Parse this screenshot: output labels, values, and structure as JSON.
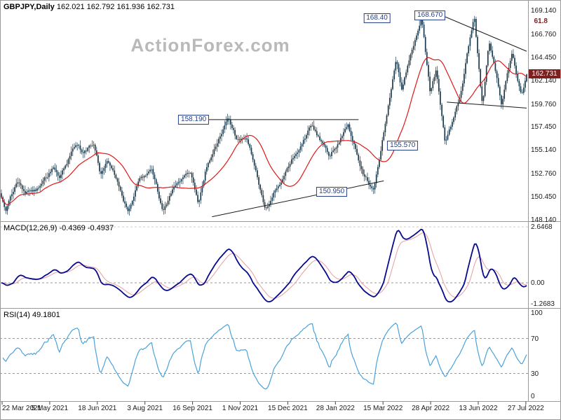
{
  "header": {
    "symbol": "GBPJPY,Daily",
    "ohlc": "162.021 162.792 161.936 162.731"
  },
  "watermark": "ActionForex.com",
  "panels": {
    "macd": {
      "header": "MACD(12,26,9) -0.4369 -0.4937"
    },
    "rsi": {
      "header": "RSI(14) 49.1801"
    }
  },
  "chart_data": {
    "type": "candlestick",
    "symbol": "GBPJPY",
    "timeframe": "Daily",
    "last_candle": {
      "open": 162.021,
      "high": 162.792,
      "low": 161.936,
      "close": 162.731
    },
    "current_price": {
      "label": "162.731",
      "value": 162.731
    },
    "price_axis": {
      "max": 169.14,
      "min": 148.14,
      "labels": [
        "169.140",
        "166.760",
        "164.450",
        "162.140",
        "159.760",
        "157.450",
        "155.140",
        "152.760",
        "150.450",
        "148.140"
      ],
      "values": [
        169.14,
        166.76,
        164.45,
        162.14,
        159.76,
        157.45,
        155.14,
        152.76,
        150.45,
        148.14
      ]
    },
    "x_labels": [
      "22 Mar 2021",
      "5 May 2021",
      "18 Jun 2021",
      "3 Aug 2021",
      "16 Sep 2021",
      "1 Nov 2021",
      "15 Dec 2021",
      "28 Jan 2022",
      "15 Mar 2022",
      "28 Apr 2022",
      "13 Jun 2022",
      "27 Jul 2022"
    ],
    "candle_count": 354,
    "price_keypoints": [
      [
        0.0,
        150.3
      ],
      [
        0.008,
        149.1
      ],
      [
        0.03,
        152.2
      ],
      [
        0.045,
        150.9
      ],
      [
        0.07,
        151.3
      ],
      [
        0.1,
        153.4
      ],
      [
        0.11,
        152.3
      ],
      [
        0.135,
        155.1
      ],
      [
        0.145,
        155.9
      ],
      [
        0.155,
        154.6
      ],
      [
        0.176,
        156.0
      ],
      [
        0.188,
        152.9
      ],
      [
        0.202,
        154.0
      ],
      [
        0.222,
        151.8
      ],
      [
        0.242,
        148.7
      ],
      [
        0.262,
        152.3
      ],
      [
        0.287,
        153.2
      ],
      [
        0.307,
        149.1
      ],
      [
        0.33,
        151.6
      ],
      [
        0.359,
        152.8
      ],
      [
        0.375,
        149.6
      ],
      [
        0.39,
        153.4
      ],
      [
        0.432,
        158.1
      ],
      [
        0.448,
        156.2
      ],
      [
        0.468,
        156.4
      ],
      [
        0.497,
        150.4
      ],
      [
        0.503,
        149.2
      ],
      [
        0.53,
        151.9
      ],
      [
        0.558,
        154.8
      ],
      [
        0.572,
        155.9
      ],
      [
        0.59,
        157.6
      ],
      [
        0.625,
        154.4
      ],
      [
        0.66,
        157.7
      ],
      [
        0.687,
        153.1
      ],
      [
        0.709,
        150.95
      ],
      [
        0.752,
        164.5
      ],
      [
        0.762,
        161.3
      ],
      [
        0.8,
        168.42
      ],
      [
        0.816,
        160.9
      ],
      [
        0.828,
        163.3
      ],
      [
        0.845,
        155.65
      ],
      [
        0.872,
        160.2
      ],
      [
        0.9,
        168.65
      ],
      [
        0.916,
        159.6
      ],
      [
        0.928,
        166.2
      ],
      [
        0.952,
        159.9
      ],
      [
        0.972,
        164.7
      ],
      [
        0.99,
        160.4
      ],
      [
        1.0,
        162.6
      ]
    ],
    "ma": {
      "period": 25
    },
    "annotations": [
      {
        "label": "168.40",
        "t": 0.715,
        "price": 168.4,
        "style": "box"
      },
      {
        "label": "168.670",
        "t": 0.816,
        "price": 168.67,
        "style": "box"
      },
      {
        "label": "158.190",
        "t": 0.366,
        "price": 158.19,
        "style": "box"
      },
      {
        "label": "155.570",
        "t": 0.764,
        "price": 155.57,
        "style": "box"
      },
      {
        "label": "150.950",
        "t": 0.629,
        "price": 150.95,
        "style": "box"
      },
      {
        "label": "61.8",
        "t": 1.027,
        "price": 168.05,
        "style": "plain"
      }
    ],
    "trend_lines": [
      [
        0.401,
        148.45,
        0.728,
        152.05
      ],
      [
        0.381,
        158.19,
        0.68,
        158.19
      ],
      [
        0.843,
        168.55,
        1.0,
        165.05
      ],
      [
        0.848,
        159.95,
        1.0,
        159.35
      ]
    ],
    "macd": {
      "params": [
        12,
        26,
        9
      ],
      "values": [
        -0.4369,
        -0.4937
      ],
      "axis": {
        "labels": [
          "2.6468",
          "0.00",
          "-1.2683"
        ],
        "values": [
          2.6468,
          0,
          -1.2683
        ]
      }
    },
    "rsi": {
      "period": 14,
      "value": 49.1801,
      "axis": {
        "labels": [
          "100",
          "70",
          "30",
          "0"
        ],
        "values": [
          100,
          70,
          30,
          0
        ]
      },
      "bands": [
        70,
        30
      ]
    },
    "colors": {
      "candle": "#1c3a4c",
      "ma_line": "#e01818",
      "macd_line": "#0a0a8c",
      "macd_signal": "#e4a0a0",
      "rsi_line": "#4aa2d9",
      "trend_line": "#1a1a1a",
      "dashed": "#999999",
      "border": "#9a9a9a",
      "price_tag_bg": "#7c1f1f",
      "annotation": "#27408b",
      "watermark": "#b9b9b9"
    }
  }
}
